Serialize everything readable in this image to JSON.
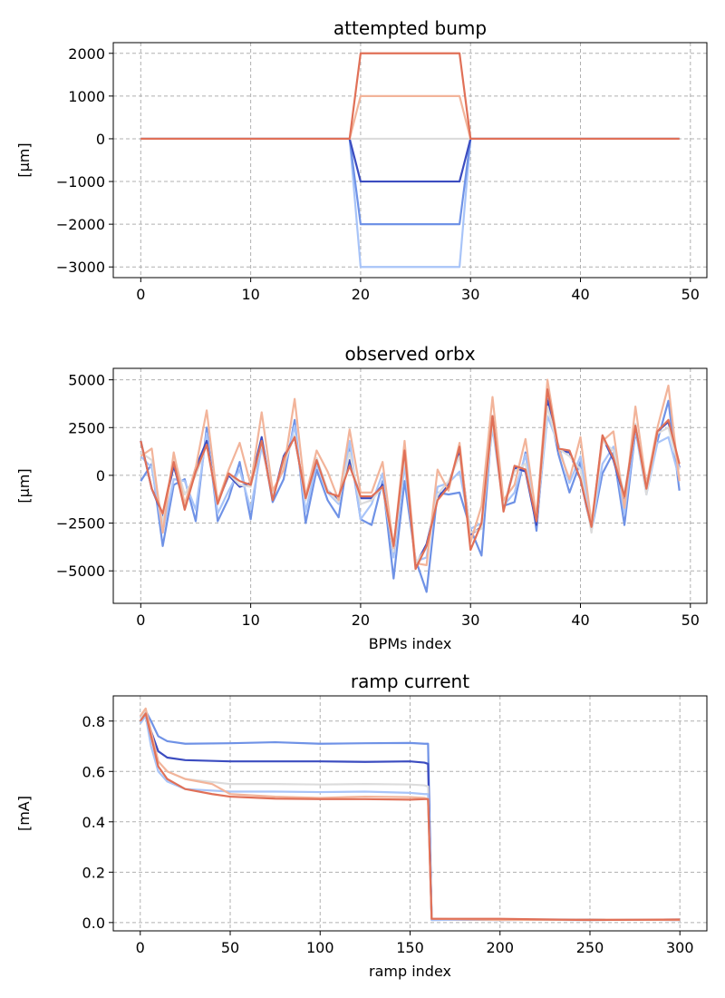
{
  "chart_data": [
    {
      "type": "line",
      "title": "attempted bump",
      "xlabel": "",
      "ylabel": "[$\\mu$m]",
      "ylabel_display": "[μm]",
      "xlim": [
        -2.5,
        51.5
      ],
      "ylim": [
        -3250,
        2250
      ],
      "xticks": [
        0,
        10,
        20,
        30,
        40,
        50
      ],
      "yticks": [
        -3000,
        -2000,
        -1000,
        0,
        1000,
        2000
      ],
      "ytick_labels": [
        "−3000",
        "−2000",
        "−1000",
        "0",
        "1000",
        "2000"
      ],
      "grid": true,
      "series": [
        {
          "color": "#a8c4f8",
          "points": [
            [
              0,
              0
            ],
            [
              19,
              0
            ],
            [
              20,
              -3000
            ],
            [
              29,
              -3000
            ],
            [
              30,
              0
            ],
            [
              49,
              0
            ]
          ]
        },
        {
          "color": "#6f92e6",
          "points": [
            [
              0,
              0
            ],
            [
              19,
              0
            ],
            [
              20,
              -2000
            ],
            [
              29,
              -2000
            ],
            [
              30,
              0
            ],
            [
              49,
              0
            ]
          ]
        },
        {
          "color": "#3b4cc0",
          "points": [
            [
              0,
              0
            ],
            [
              19,
              0
            ],
            [
              20,
              -1000
            ],
            [
              29,
              -1000
            ],
            [
              30,
              0
            ],
            [
              49,
              0
            ]
          ]
        },
        {
          "color": "#dcdcdc",
          "points": [
            [
              0,
              0
            ],
            [
              19,
              0
            ],
            [
              20,
              0
            ],
            [
              29,
              0
            ],
            [
              30,
              0
            ],
            [
              49,
              0
            ]
          ]
        },
        {
          "color": "#f2b49a",
          "points": [
            [
              0,
              0
            ],
            [
              19,
              0
            ],
            [
              20,
              1000
            ],
            [
              29,
              1000
            ],
            [
              30,
              0
            ],
            [
              49,
              0
            ]
          ]
        },
        {
          "color": "#e07057",
          "points": [
            [
              0,
              0
            ],
            [
              19,
              0
            ],
            [
              20,
              2000
            ],
            [
              29,
              2000
            ],
            [
              30,
              0
            ],
            [
              49,
              0
            ]
          ]
        }
      ]
    },
    {
      "type": "line",
      "title": "observed orbx",
      "xlabel": "BPMs index",
      "ylabel": "[$\\mu$m]",
      "ylabel_display": "[μm]",
      "xlim": [
        -2.5,
        51.5
      ],
      "ylim": [
        -6700,
        5600
      ],
      "xticks": [
        0,
        10,
        20,
        30,
        40,
        50
      ],
      "yticks": [
        -5000,
        -2500,
        0,
        2500,
        5000
      ],
      "ytick_labels": [
        "−5000",
        "−2500",
        "0",
        "2500",
        "5000"
      ],
      "grid": true,
      "series": [
        {
          "color": "#6f92e6",
          "values": [
            -300,
            600,
            -3700,
            -500,
            -200,
            -2400,
            2500,
            -2400,
            -1200,
            700,
            -2300,
            1900,
            -1400,
            -200,
            2900,
            -2500,
            300,
            -1300,
            -2200,
            1500,
            -2300,
            -2600,
            -300,
            -5400,
            -300,
            -4400,
            -6100,
            -900,
            -1000,
            -900,
            -2800,
            -4200,
            3000,
            -1600,
            -1400,
            1200,
            -2900,
            4000,
            1100,
            -900,
            700,
            -2900,
            100,
            1200,
            -2600,
            2300,
            -400,
            1800,
            3900,
            -800
          ]
        },
        {
          "color": "#a8c4f8",
          "values": [
            1000,
            400,
            -3000,
            -200,
            -300,
            -1800,
            2200,
            -2000,
            -800,
            300,
            -1800,
            1500,
            -900,
            300,
            2600,
            -1900,
            600,
            -900,
            -1500,
            1800,
            -2300,
            -1500,
            100,
            -4300,
            500,
            -4500,
            -4300,
            -600,
            -400,
            200,
            -2800,
            -2500,
            2500,
            -1600,
            -900,
            1100,
            -2600,
            3100,
            1600,
            -400,
            1000,
            -2800,
            600,
            1500,
            -2000,
            2400,
            -1000,
            1700,
            2000,
            -200
          ]
        },
        {
          "color": "#3b4cc0",
          "values": [
            1800,
            -700,
            -2100,
            500,
            -1600,
            400,
            1800,
            -1400,
            0,
            -600,
            -400,
            2000,
            -1300,
            1000,
            2000,
            -1200,
            800,
            -800,
            -1300,
            800,
            -1200,
            -1200,
            -500,
            -4000,
            1200,
            -4700,
            -3600,
            -1200,
            -500,
            1300,
            -3100,
            -2700,
            3100,
            -1700,
            400,
            200,
            -2600,
            3900,
            1300,
            1200,
            -200,
            -2800,
            2000,
            800,
            -1200,
            2600,
            -700,
            2300,
            2800,
            400
          ]
        },
        {
          "color": "#dcdcdc",
          "values": [
            1200,
            800,
            -2500,
            1000,
            -1000,
            0,
            1600,
            -1300,
            100,
            -500,
            -600,
            1700,
            -1100,
            600,
            2100,
            -1300,
            900,
            -800,
            -1400,
            1200,
            -1500,
            -1300,
            -600,
            -4000,
            1000,
            -4600,
            -3800,
            -1000,
            -300,
            1000,
            -3000,
            -2800,
            2800,
            -1500,
            200,
            600,
            -2400,
            3600,
            1400,
            1000,
            300,
            -3000,
            1800,
            1300,
            -1000,
            2700,
            -1000,
            2200,
            2500,
            300
          ]
        },
        {
          "color": "#f2b49a",
          "values": [
            1000,
            1400,
            -3000,
            1200,
            -1500,
            400,
            3400,
            -1400,
            300,
            1700,
            -500,
            3300,
            -800,
            300,
            4000,
            -1100,
            1300,
            200,
            -1300,
            2400,
            -900,
            -900,
            700,
            -3800,
            1800,
            -4600,
            -4700,
            300,
            -800,
            1700,
            -3500,
            -1600,
            4100,
            -1300,
            -500,
            1900,
            -2200,
            5000,
            1400,
            -200,
            2000,
            -2500,
            1800,
            2300,
            -1700,
            3600,
            -500,
            2500,
            4700,
            -300
          ]
        },
        {
          "color": "#e07057",
          "values": [
            1800,
            -700,
            -2000,
            700,
            -1800,
            200,
            1600,
            -1500,
            100,
            -300,
            -500,
            1800,
            -1300,
            900,
            2000,
            -1200,
            800,
            -900,
            -1100,
            500,
            -1100,
            -1100,
            -600,
            -3700,
            1300,
            -4900,
            -3700,
            -1300,
            -600,
            1500,
            -3900,
            -2500,
            3100,
            -1900,
            500,
            300,
            -2400,
            4500,
            1400,
            1300,
            -200,
            -2700,
            2100,
            900,
            -1100,
            2600,
            -700,
            2300,
            2900,
            600
          ]
        }
      ]
    },
    {
      "type": "line",
      "title": "ramp current",
      "xlabel": "ramp index",
      "ylabel": "[mA]",
      "ylabel_display": "[mA]",
      "xlim": [
        -15,
        315
      ],
      "ylim": [
        -0.033,
        0.9
      ],
      "xticks": [
        0,
        50,
        100,
        150,
        200,
        250,
        300
      ],
      "yticks": [
        0.0,
        0.2,
        0.4,
        0.6,
        0.8
      ],
      "ytick_labels": [
        "0.0",
        "0.2",
        "0.4",
        "0.6",
        "0.8"
      ],
      "grid": true,
      "series": [
        {
          "color": "#6f92e6",
          "points": [
            [
              0,
              0.81
            ],
            [
              3,
              0.84
            ],
            [
              6,
              0.8
            ],
            [
              10,
              0.74
            ],
            [
              15,
              0.72
            ],
            [
              25,
              0.71
            ],
            [
              50,
              0.712
            ],
            [
              75,
              0.716
            ],
            [
              100,
              0.71
            ],
            [
              125,
              0.712
            ],
            [
              150,
              0.713
            ],
            [
              158,
              0.71
            ],
            [
              160,
              0.71
            ],
            [
              162,
              0.01
            ],
            [
              200,
              0.012
            ],
            [
              250,
              0.01
            ],
            [
              300,
              0.012
            ]
          ]
        },
        {
          "color": "#3b4cc0",
          "points": [
            [
              0,
              0.82
            ],
            [
              3,
              0.83
            ],
            [
              6,
              0.76
            ],
            [
              10,
              0.68
            ],
            [
              15,
              0.655
            ],
            [
              25,
              0.645
            ],
            [
              50,
              0.64
            ],
            [
              75,
              0.64
            ],
            [
              100,
              0.64
            ],
            [
              125,
              0.638
            ],
            [
              150,
              0.64
            ],
            [
              158,
              0.635
            ],
            [
              160,
              0.63
            ],
            [
              162,
              0.012
            ],
            [
              200,
              0.01
            ],
            [
              250,
              0.012
            ],
            [
              300,
              0.01
            ]
          ]
        },
        {
          "color": "#dcdcdc",
          "points": [
            [
              0,
              0.81
            ],
            [
              3,
              0.84
            ],
            [
              6,
              0.75
            ],
            [
              10,
              0.64
            ],
            [
              15,
              0.6
            ],
            [
              25,
              0.57
            ],
            [
              50,
              0.55
            ],
            [
              75,
              0.55
            ],
            [
              100,
              0.548
            ],
            [
              125,
              0.55
            ],
            [
              150,
              0.548
            ],
            [
              158,
              0.545
            ],
            [
              160,
              0.54
            ],
            [
              162,
              0.012
            ],
            [
              200,
              0.012
            ],
            [
              250,
              0.01
            ],
            [
              300,
              0.012
            ]
          ]
        },
        {
          "color": "#a8c4f8",
          "points": [
            [
              0,
              0.79
            ],
            [
              3,
              0.82
            ],
            [
              6,
              0.7
            ],
            [
              10,
              0.6
            ],
            [
              15,
              0.56
            ],
            [
              25,
              0.53
            ],
            [
              50,
              0.52
            ],
            [
              75,
              0.52
            ],
            [
              100,
              0.518
            ],
            [
              125,
              0.52
            ],
            [
              150,
              0.515
            ],
            [
              158,
              0.51
            ],
            [
              160,
              0.51
            ],
            [
              162,
              0.01
            ],
            [
              200,
              0.012
            ],
            [
              250,
              0.012
            ],
            [
              300,
              0.01
            ]
          ]
        },
        {
          "color": "#f2b49a",
          "points": [
            [
              0,
              0.82
            ],
            [
              3,
              0.85
            ],
            [
              6,
              0.76
            ],
            [
              10,
              0.64
            ],
            [
              15,
              0.6
            ],
            [
              25,
              0.57
            ],
            [
              40,
              0.55
            ],
            [
              50,
              0.51
            ],
            [
              75,
              0.5
            ],
            [
              100,
              0.495
            ],
            [
              125,
              0.5
            ],
            [
              150,
              0.498
            ],
            [
              158,
              0.495
            ],
            [
              160,
              0.49
            ],
            [
              162,
              0.015
            ],
            [
              200,
              0.01
            ],
            [
              250,
              0.012
            ],
            [
              300,
              0.01
            ]
          ]
        },
        {
          "color": "#e07057",
          "points": [
            [
              0,
              0.8
            ],
            [
              3,
              0.83
            ],
            [
              6,
              0.74
            ],
            [
              10,
              0.62
            ],
            [
              15,
              0.57
            ],
            [
              25,
              0.53
            ],
            [
              40,
              0.51
            ],
            [
              50,
              0.5
            ],
            [
              75,
              0.492
            ],
            [
              100,
              0.49
            ],
            [
              125,
              0.49
            ],
            [
              150,
              0.488
            ],
            [
              158,
              0.49
            ],
            [
              160,
              0.49
            ],
            [
              162,
              0.015
            ],
            [
              200,
              0.015
            ],
            [
              250,
              0.01
            ],
            [
              300,
              0.012
            ]
          ]
        }
      ]
    }
  ]
}
